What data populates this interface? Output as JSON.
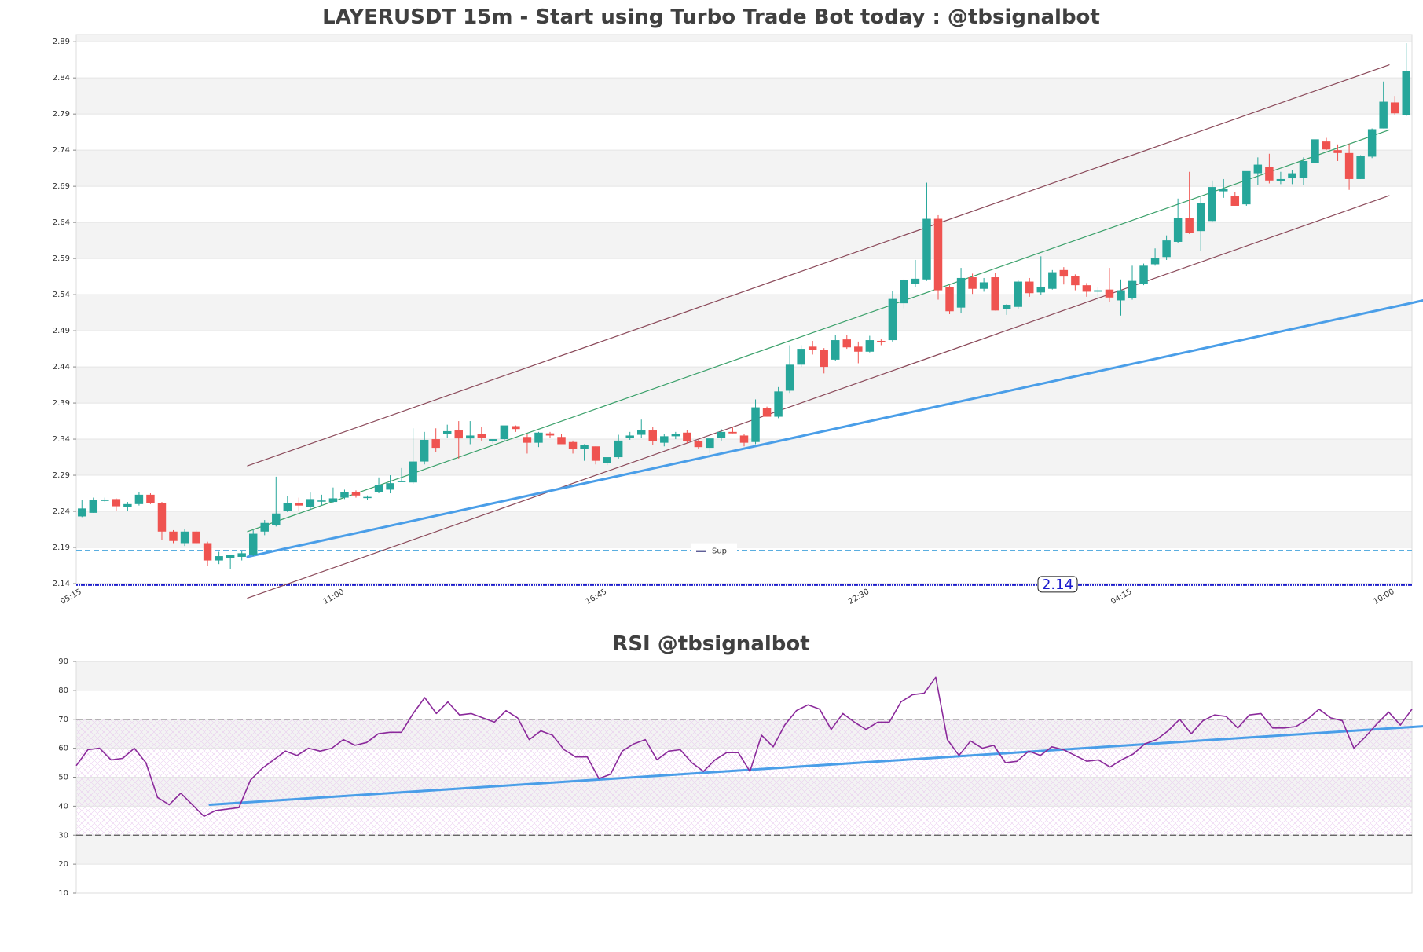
{
  "chart_data": [
    {
      "type": "candlestick",
      "title": "LAYERUSDT 15m - Start using Turbo Trade Bot today : @tbsignalbot",
      "ylim": [
        2.14,
        2.9
      ],
      "yticks": [
        "2.14",
        "2.19",
        "2.24",
        "2.29",
        "2.34",
        "2.39",
        "2.44",
        "2.49",
        "2.54",
        "2.59",
        "2.64",
        "2.69",
        "2.74",
        "2.79",
        "2.84",
        "2.89"
      ],
      "xticks": [
        {
          "label": "05:15",
          "index": 0
        },
        {
          "label": "11:00",
          "index": 23
        },
        {
          "label": "16:45",
          "index": 46
        },
        {
          "label": "22:30",
          "index": 69
        },
        {
          "label": "04:15",
          "index": 92
        },
        {
          "label": "10:00",
          "index": 115
        }
      ],
      "candles": [
        [
          2.233,
          2.256,
          2.232,
          2.244
        ],
        [
          2.238,
          2.259,
          2.238,
          2.256
        ],
        [
          2.256,
          2.259,
          2.253,
          2.256
        ],
        [
          2.257,
          2.258,
          2.241,
          2.247
        ],
        [
          2.246,
          2.253,
          2.24,
          2.25
        ],
        [
          2.25,
          2.267,
          2.248,
          2.263
        ],
        [
          2.263,
          2.265,
          2.25,
          2.251
        ],
        [
          2.252,
          2.253,
          2.2,
          2.212
        ],
        [
          2.212,
          2.214,
          2.196,
          2.199
        ],
        [
          2.196,
          2.215,
          2.192,
          2.212
        ],
        [
          2.212,
          2.214,
          2.195,
          2.196
        ],
        [
          2.196,
          2.198,
          2.165,
          2.172
        ],
        [
          2.172,
          2.184,
          2.167,
          2.178
        ],
        [
          2.175,
          2.18,
          2.16,
          2.18
        ],
        [
          2.177,
          2.185,
          2.172,
          2.182
        ],
        [
          2.18,
          2.214,
          2.178,
          2.209
        ],
        [
          2.212,
          2.228,
          2.207,
          2.224
        ],
        [
          2.221,
          2.288,
          2.219,
          2.237
        ],
        [
          2.241,
          2.261,
          2.239,
          2.252
        ],
        [
          2.252,
          2.259,
          2.24,
          2.248
        ],
        [
          2.246,
          2.266,
          2.242,
          2.257
        ],
        [
          2.254,
          2.263,
          2.248,
          2.255
        ],
        [
          2.253,
          2.273,
          2.251,
          2.258
        ],
        [
          2.259,
          2.27,
          2.257,
          2.267
        ],
        [
          2.267,
          2.269,
          2.259,
          2.262
        ],
        [
          2.259,
          2.262,
          2.256,
          2.26
        ],
        [
          2.267,
          2.287,
          2.265,
          2.276
        ],
        [
          2.27,
          2.29,
          2.265,
          2.279
        ],
        [
          2.281,
          2.3,
          2.281,
          2.282
        ],
        [
          2.28,
          2.355,
          2.278,
          2.309
        ],
        [
          2.309,
          2.35,
          2.305,
          2.339
        ],
        [
          2.34,
          2.355,
          2.322,
          2.328
        ],
        [
          2.347,
          2.36,
          2.342,
          2.351
        ],
        [
          2.352,
          2.365,
          2.313,
          2.341
        ],
        [
          2.341,
          2.365,
          2.333,
          2.345
        ],
        [
          2.347,
          2.357,
          2.338,
          2.342
        ],
        [
          2.337,
          2.34,
          2.334,
          2.34
        ],
        [
          2.34,
          2.358,
          2.338,
          2.359
        ],
        [
          2.358,
          2.359,
          2.35,
          2.354
        ],
        [
          2.343,
          2.347,
          2.32,
          2.335
        ],
        [
          2.335,
          2.35,
          2.329,
          2.349
        ],
        [
          2.348,
          2.35,
          2.342,
          2.345
        ],
        [
          2.343,
          2.347,
          2.333,
          2.333
        ],
        [
          2.336,
          2.338,
          2.32,
          2.327
        ],
        [
          2.326,
          2.333,
          2.31,
          2.332
        ],
        [
          2.33,
          2.33,
          2.305,
          2.31
        ],
        [
          2.307,
          2.312,
          2.304,
          2.315
        ],
        [
          2.315,
          2.346,
          2.313,
          2.338
        ],
        [
          2.342,
          2.35,
          2.339,
          2.345
        ],
        [
          2.346,
          2.367,
          2.342,
          2.352
        ],
        [
          2.352,
          2.357,
          2.332,
          2.337
        ],
        [
          2.335,
          2.347,
          2.33,
          2.344
        ],
        [
          2.344,
          2.35,
          2.34,
          2.347
        ],
        [
          2.349,
          2.353,
          2.334,
          2.337
        ],
        [
          2.337,
          2.339,
          2.326,
          2.329
        ],
        [
          2.328,
          2.34,
          2.32,
          2.341
        ],
        [
          2.342,
          2.354,
          2.338,
          2.35
        ],
        [
          2.35,
          2.356,
          2.348,
          2.348
        ],
        [
          2.345,
          2.347,
          2.33,
          2.335
        ],
        [
          2.336,
          2.395,
          2.333,
          2.384
        ],
        [
          2.383,
          2.385,
          2.371,
          2.371
        ],
        [
          2.371,
          2.412,
          2.369,
          2.406
        ],
        [
          2.407,
          2.47,
          2.404,
          2.443
        ],
        [
          2.443,
          2.47,
          2.44,
          2.465
        ],
        [
          2.468,
          2.476,
          2.457,
          2.463
        ],
        [
          2.464,
          2.466,
          2.431,
          2.44
        ],
        [
          2.45,
          2.484,
          2.448,
          2.477
        ],
        [
          2.478,
          2.484,
          2.465,
          2.467
        ],
        [
          2.468,
          2.475,
          2.445,
          2.461
        ],
        [
          2.461,
          2.483,
          2.46,
          2.477
        ],
        [
          2.476,
          2.478,
          2.47,
          2.474
        ],
        [
          2.477,
          2.545,
          2.475,
          2.534
        ],
        [
          2.528,
          2.561,
          2.521,
          2.56
        ],
        [
          2.555,
          2.588,
          2.55,
          2.562
        ],
        [
          2.561,
          2.695,
          2.559,
          2.645
        ],
        [
          2.645,
          2.65,
          2.533,
          2.546
        ],
        [
          2.55,
          2.553,
          2.513,
          2.517
        ],
        [
          2.522,
          2.577,
          2.514,
          2.563
        ],
        [
          2.564,
          2.569,
          2.541,
          2.548
        ],
        [
          2.548,
          2.563,
          2.544,
          2.557
        ],
        [
          2.564,
          2.57,
          2.518,
          2.518
        ],
        [
          2.52,
          2.527,
          2.512,
          2.526
        ],
        [
          2.523,
          2.56,
          2.52,
          2.558
        ],
        [
          2.558,
          2.563,
          2.537,
          2.542
        ],
        [
          2.543,
          2.593,
          2.54,
          2.551
        ],
        [
          2.548,
          2.574,
          2.547,
          2.571
        ],
        [
          2.574,
          2.578,
          2.554,
          2.565
        ],
        [
          2.566,
          2.568,
          2.546,
          2.553
        ],
        [
          2.553,
          2.556,
          2.537,
          2.544
        ],
        [
          2.544,
          2.55,
          2.532,
          2.546
        ],
        [
          2.547,
          2.577,
          2.53,
          2.536
        ],
        [
          2.532,
          2.561,
          2.511,
          2.546
        ],
        [
          2.535,
          2.58,
          2.533,
          2.559
        ],
        [
          2.555,
          2.583,
          2.553,
          2.58
        ],
        [
          2.582,
          2.604,
          2.58,
          2.591
        ],
        [
          2.592,
          2.622,
          2.588,
          2.615
        ],
        [
          2.613,
          2.673,
          2.611,
          2.646
        ],
        [
          2.646,
          2.71,
          2.624,
          2.626
        ],
        [
          2.628,
          2.675,
          2.6,
          2.667
        ],
        [
          2.642,
          2.698,
          2.64,
          2.689
        ],
        [
          2.683,
          2.7,
          2.674,
          2.686
        ],
        [
          2.676,
          2.682,
          2.663,
          2.663
        ],
        [
          2.665,
          2.71,
          2.663,
          2.711
        ],
        [
          2.708,
          2.73,
          2.692,
          2.72
        ],
        [
          2.717,
          2.735,
          2.694,
          2.698
        ],
        [
          2.697,
          2.71,
          2.693,
          2.7
        ],
        [
          2.701,
          2.712,
          2.693,
          2.708
        ],
        [
          2.702,
          2.73,
          2.692,
          2.725
        ],
        [
          2.722,
          2.764,
          2.714,
          2.755
        ],
        [
          2.752,
          2.757,
          2.74,
          2.741
        ],
        [
          2.74,
          2.748,
          2.725,
          2.736
        ],
        [
          2.736,
          2.749,
          2.685,
          2.7
        ],
        [
          2.7,
          2.733,
          2.7,
          2.732
        ],
        [
          2.731,
          2.77,
          2.729,
          2.769
        ],
        [
          2.77,
          2.835,
          2.77,
          2.807
        ],
        [
          2.806,
          2.815,
          2.788,
          2.791
        ],
        [
          2.789,
          2.888,
          2.787,
          2.849
        ]
      ],
      "lines": [
        {
          "name": "upper channel",
          "color": "#8b4a5a",
          "width": 1.2,
          "x": [
            14.5,
            114.5
          ],
          "y": [
            2.303,
            2.858
          ]
        },
        {
          "name": "middle channel",
          "color": "#3aa06a",
          "width": 1.2,
          "x": [
            14.5,
            114.5
          ],
          "y": [
            2.212,
            2.768
          ]
        },
        {
          "name": "lower channel",
          "color": "#8b4a5a",
          "width": 1.2,
          "x": [
            14.5,
            114.5
          ],
          "y": [
            2.12,
            2.677
          ]
        },
        {
          "name": "trend",
          "color": "#4a9ee8",
          "width": 3,
          "x": [
            14.5,
            117.5
          ],
          "y": [
            2.177,
            2.532
          ]
        }
      ],
      "support": {
        "label": "Sup",
        "value": 2.186,
        "color": "#5aaee0"
      },
      "bottom_line": {
        "value": 2.138,
        "color": "#2020cc"
      },
      "price_label": "2.14",
      "colors": {
        "up": "#26a69a",
        "down": "#ef5350"
      }
    },
    {
      "type": "line",
      "title": "RSI @tbsignalbot",
      "ylim": [
        10,
        90
      ],
      "yticks": [
        "10",
        "20",
        "30",
        "40",
        "50",
        "60",
        "70",
        "80",
        "90"
      ],
      "levels": [
        30,
        70
      ],
      "values": [
        54,
        59.5,
        60,
        56,
        56.5,
        60,
        55,
        43,
        40.5,
        44.5,
        40.5,
        36.5,
        38.5,
        39,
        39.5,
        49,
        53,
        56,
        59,
        57.5,
        60,
        59,
        60,
        63,
        61,
        62,
        65,
        65.5,
        65.5,
        72,
        77.5,
        72,
        76,
        71.5,
        72,
        70.5,
        69,
        73,
        70.5,
        63,
        66,
        64.5,
        59.5,
        57,
        57,
        49.5,
        51,
        59,
        61.5,
        63,
        56,
        59,
        59.5,
        55,
        52,
        56,
        58.5,
        58.5,
        52,
        64.5,
        60.5,
        68,
        73,
        75,
        73.5,
        66.5,
        72,
        69,
        66.5,
        69,
        69,
        76,
        78.5,
        79,
        84.5,
        63,
        57.5,
        62.5,
        60,
        61,
        55,
        55.5,
        59,
        57.5,
        60.5,
        59.5,
        57.5,
        55.5,
        56,
        53.5,
        56,
        58,
        61.5,
        63,
        66,
        70,
        65,
        69.5,
        71.5,
        71,
        67,
        71.5,
        72,
        67,
        67,
        67.5,
        70,
        73.5,
        70.5,
        69.5,
        60,
        64,
        68.5,
        72.5,
        68,
        73.5
      ],
      "trend": {
        "color": "#4a9ee8",
        "width": 3,
        "x": [
          11.5,
          117.5
        ],
        "y": [
          40.5,
          68
        ]
      },
      "line_color": "#8b2a9b"
    }
  ]
}
